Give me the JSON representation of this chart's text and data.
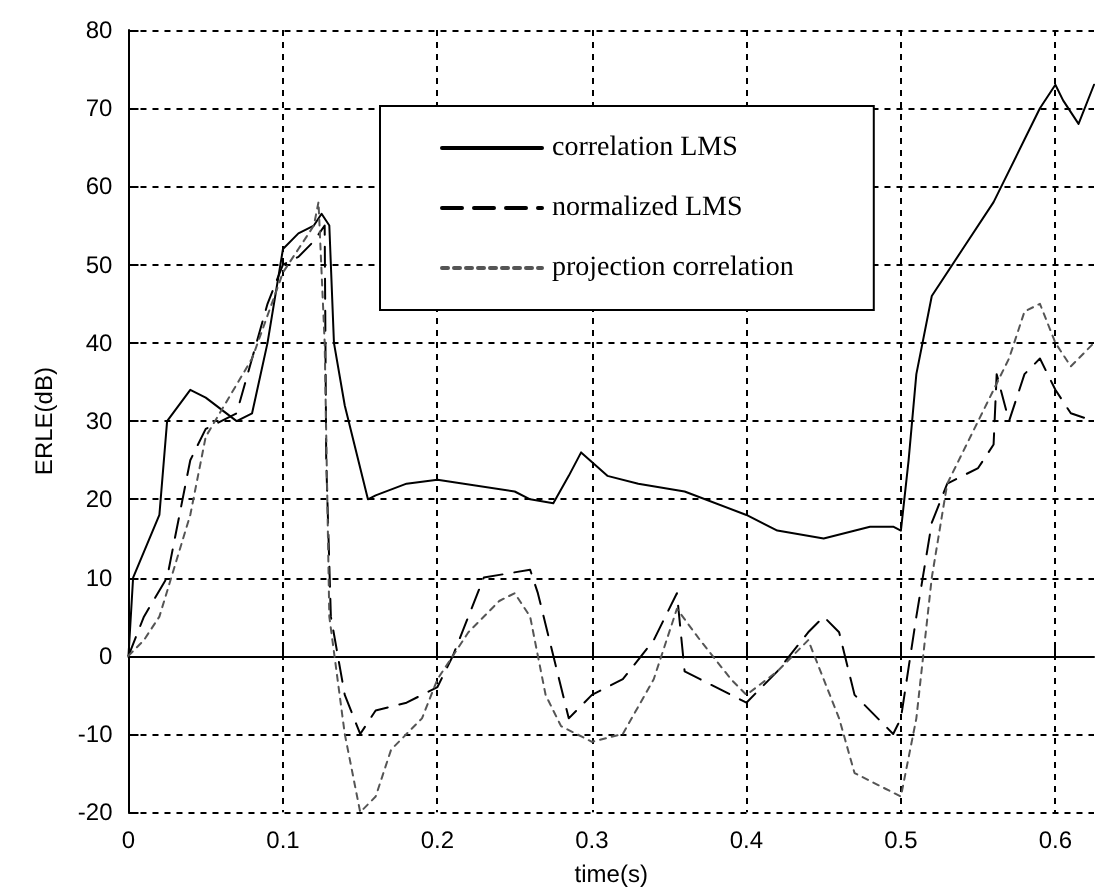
{
  "chart_data": {
    "type": "line",
    "xlabel": "time(s)",
    "ylabel": "ERLE(dB)",
    "xlim": [
      0,
      0.625
    ],
    "xticks": [
      0,
      0.1,
      0.2,
      0.3,
      0.4,
      0.5,
      0.6
    ],
    "ylim": [
      -20,
      80
    ],
    "yticks": [
      -20,
      -10,
      0,
      10,
      20,
      30,
      40,
      50,
      60,
      70,
      80
    ],
    "grid": true,
    "legend": "top",
    "marker": "none",
    "series": [
      {
        "name": "correlation LMS",
        "color": "#000000",
        "line_style": "solid",
        "x": [
          0,
          0.003,
          0.02,
          0.025,
          0.04,
          0.05,
          0.07,
          0.08,
          0.09,
          0.1,
          0.11,
          0.12,
          0.125,
          0.13,
          0.133,
          0.14,
          0.155,
          0.16,
          0.18,
          0.2,
          0.25,
          0.26,
          0.275,
          0.285,
          0.293,
          0.31,
          0.33,
          0.36,
          0.4,
          0.42,
          0.45,
          0.48,
          0.495,
          0.5,
          0.505,
          0.51,
          0.52,
          0.54,
          0.56,
          0.58,
          0.59,
          0.6,
          0.605,
          0.615,
          0.625
        ],
        "values": [
          0,
          10,
          18,
          30,
          34,
          33,
          30,
          31,
          40,
          52,
          54,
          55,
          56.5,
          55,
          40,
          32,
          20,
          20.5,
          22,
          22.5,
          21,
          20,
          19.5,
          23,
          26,
          23,
          22,
          21,
          18,
          16,
          15,
          16.5,
          16.5,
          16,
          25,
          36,
          46,
          52,
          58,
          66,
          70,
          73,
          71,
          68,
          73
        ]
      },
      {
        "name": "normalized LMS",
        "color": "#000000",
        "line_style": "dashed",
        "x": [
          0,
          0.01,
          0.025,
          0.04,
          0.05,
          0.07,
          0.09,
          0.1,
          0.11,
          0.12,
          0.127,
          0.128,
          0.131,
          0.14,
          0.15,
          0.16,
          0.18,
          0.2,
          0.21,
          0.22,
          0.23,
          0.26,
          0.265,
          0.275,
          0.285,
          0.3,
          0.32,
          0.34,
          0.35,
          0.355,
          0.36,
          0.37,
          0.39,
          0.4,
          0.42,
          0.44,
          0.45,
          0.46,
          0.47,
          0.49,
          0.495,
          0.5,
          0.51,
          0.52,
          0.53,
          0.55,
          0.56,
          0.562,
          0.57,
          0.58,
          0.59,
          0.6,
          0.61,
          0.625
        ],
        "values": [
          0,
          5,
          10,
          25,
          29,
          31,
          45,
          50,
          51,
          53,
          55,
          25,
          5,
          -5,
          -10,
          -7,
          -6,
          -4,
          0,
          5,
          10,
          11,
          8,
          0,
          -8,
          -5,
          -3,
          2,
          6,
          8,
          -2,
          -3,
          -5,
          -6,
          -2,
          3,
          5,
          3,
          -5,
          -9,
          -10,
          -8,
          5,
          17,
          22,
          24,
          27,
          36,
          30,
          36,
          38,
          34,
          31,
          30
        ]
      },
      {
        "name": "projection correlation",
        "color": "#555555",
        "line_style": "dotted",
        "x": [
          0,
          0.01,
          0.02,
          0.04,
          0.05,
          0.08,
          0.1,
          0.11,
          0.12,
          0.123,
          0.127,
          0.13,
          0.14,
          0.15,
          0.16,
          0.17,
          0.19,
          0.2,
          0.22,
          0.24,
          0.25,
          0.26,
          0.27,
          0.28,
          0.3,
          0.32,
          0.34,
          0.355,
          0.37,
          0.39,
          0.4,
          0.42,
          0.44,
          0.46,
          0.47,
          0.49,
          0.5,
          0.51,
          0.52,
          0.53,
          0.55,
          0.57,
          0.58,
          0.59,
          0.6,
          0.61,
          0.625
        ],
        "values": [
          0,
          2,
          5,
          18,
          28,
          38,
          49,
          52,
          55,
          58,
          40,
          5,
          -10,
          -20,
          -18,
          -12,
          -8,
          -3,
          3,
          7,
          8,
          5,
          -5,
          -9,
          -11,
          -10,
          -3,
          6,
          2,
          -3,
          -5,
          -2,
          2,
          -8,
          -15,
          -17,
          -18,
          -8,
          10,
          22,
          30,
          38,
          44,
          45,
          40,
          37,
          40
        ]
      }
    ]
  }
}
